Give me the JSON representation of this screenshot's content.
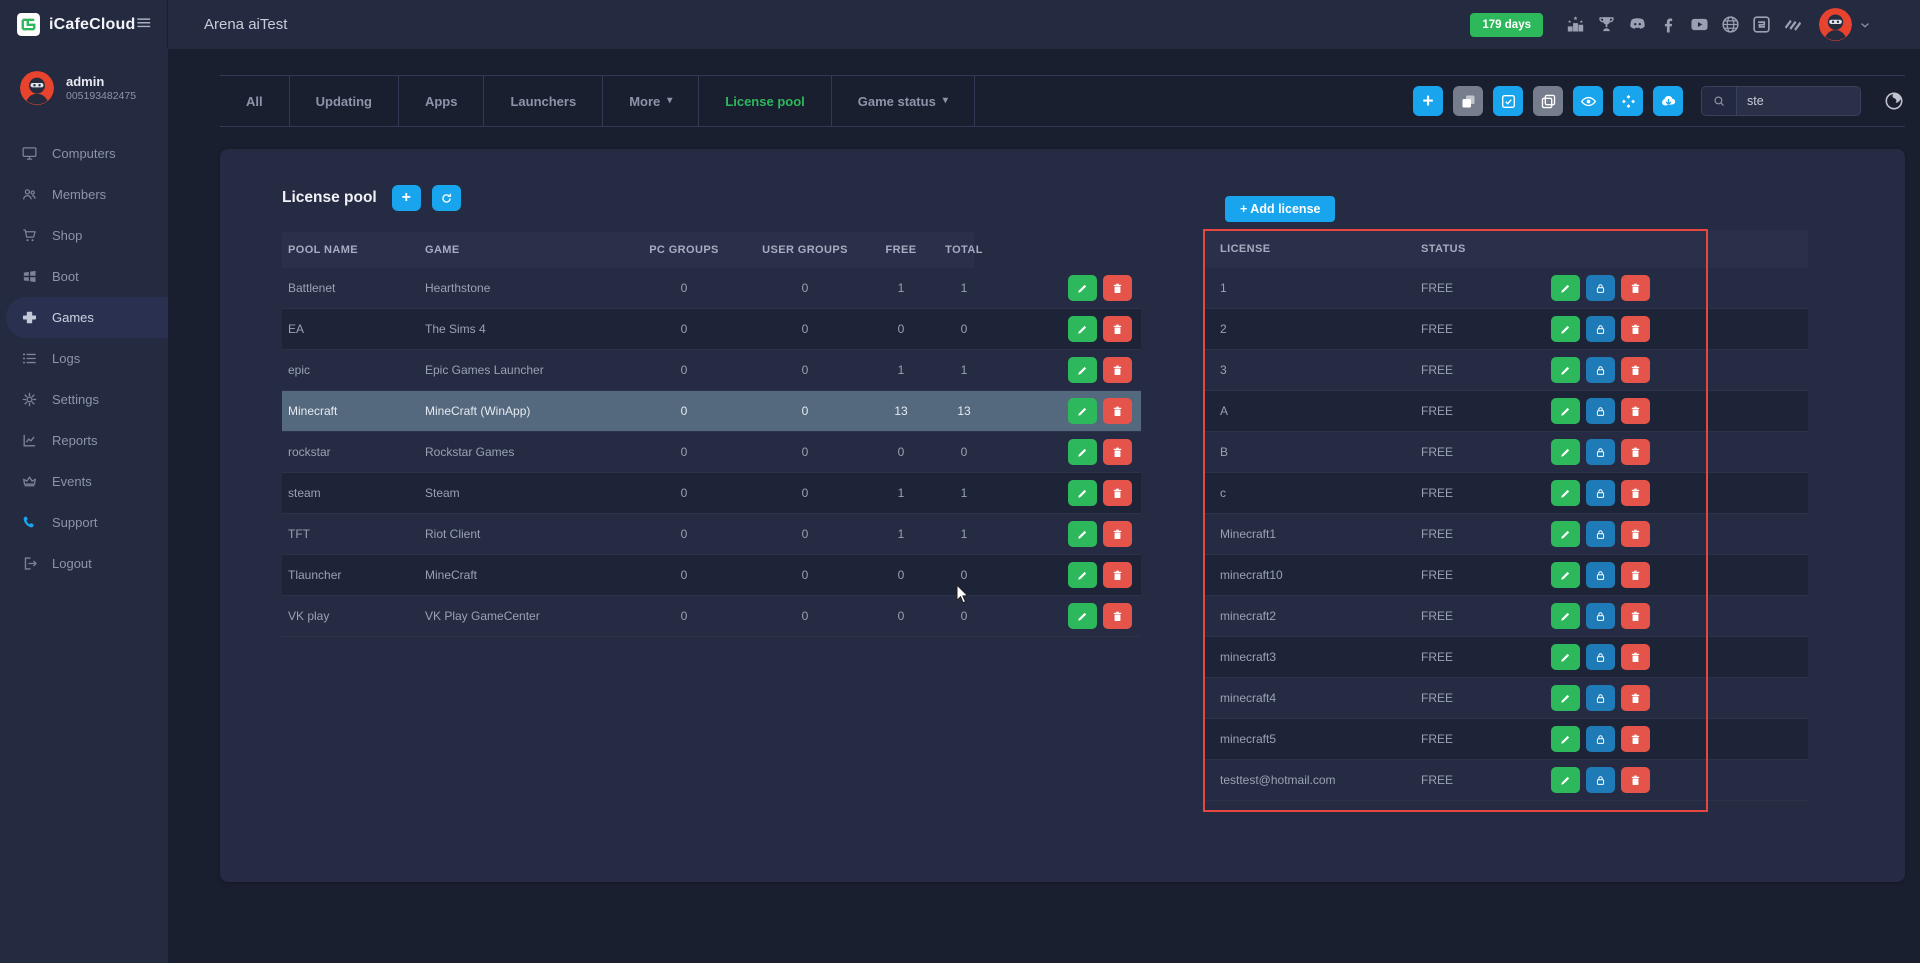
{
  "header": {
    "brand": "iCafeCloud",
    "page_title": "Arena aiTest",
    "days_badge": "179 days",
    "icons": [
      "ranking",
      "trophy",
      "discord",
      "facebook",
      "youtube",
      "globe",
      "icafecloud-mini",
      "layers-brand"
    ]
  },
  "sidebar": {
    "user": {
      "name": "admin",
      "id": "005193482475"
    },
    "items": [
      {
        "label": "Computers",
        "icon": "computers",
        "active": false
      },
      {
        "label": "Members",
        "icon": "members",
        "active": false
      },
      {
        "label": "Shop",
        "icon": "shop",
        "active": false
      },
      {
        "label": "Boot",
        "icon": "boot",
        "active": false
      },
      {
        "label": "Games",
        "icon": "games",
        "active": true
      },
      {
        "label": "Logs",
        "icon": "logs",
        "active": false
      },
      {
        "label": "Settings",
        "icon": "settings",
        "active": false
      },
      {
        "label": "Reports",
        "icon": "reports",
        "active": false
      },
      {
        "label": "Events",
        "icon": "events",
        "active": false
      },
      {
        "label": "Support",
        "icon": "support",
        "active": false,
        "icon_color": "blue"
      },
      {
        "label": "Logout",
        "icon": "logout",
        "active": false
      }
    ]
  },
  "tabs": [
    {
      "label": "All",
      "active": false,
      "dropdown": false
    },
    {
      "label": "Updating",
      "active": false,
      "dropdown": false
    },
    {
      "label": "Apps",
      "active": false,
      "dropdown": false
    },
    {
      "label": "Launchers",
      "active": false,
      "dropdown": false
    },
    {
      "label": "More",
      "active": false,
      "dropdown": true
    },
    {
      "label": "License pool",
      "active": true,
      "dropdown": false
    },
    {
      "label": "Game status",
      "active": false,
      "dropdown": true
    }
  ],
  "toolbar": {
    "buttons": [
      {
        "name": "add",
        "icon": "plus",
        "style": "blue"
      },
      {
        "name": "copy-filled",
        "icon": "layers",
        "style": "gray"
      },
      {
        "name": "select-check",
        "icon": "check-square",
        "style": "blue"
      },
      {
        "name": "duplicate",
        "icon": "copy",
        "style": "gray"
      },
      {
        "name": "visibility",
        "icon": "eye",
        "style": "blue"
      },
      {
        "name": "categories",
        "icon": "diamonds",
        "style": "blue"
      },
      {
        "name": "cloud-download",
        "icon": "cloud-download",
        "style": "blue"
      }
    ],
    "search_value": "ste"
  },
  "pool_panel": {
    "title": "License pool",
    "columns": [
      "POOL NAME",
      "GAME",
      "PC GROUPS",
      "USER GROUPS",
      "FREE",
      "TOTAL"
    ],
    "rows": [
      {
        "pool": "Battlenet",
        "game": "Hearthstone",
        "pc_groups": "0",
        "user_groups": "0",
        "free": "1",
        "total": "1",
        "selected": false
      },
      {
        "pool": "EA",
        "game": "The Sims 4",
        "pc_groups": "0",
        "user_groups": "0",
        "free": "0",
        "total": "0",
        "selected": false
      },
      {
        "pool": "epic",
        "game": "Epic Games Launcher",
        "pc_groups": "0",
        "user_groups": "0",
        "free": "1",
        "total": "1",
        "selected": false
      },
      {
        "pool": "Minecraft",
        "game": "MineCraft (WinApp)",
        "pc_groups": "0",
        "user_groups": "0",
        "free": "13",
        "total": "13",
        "selected": true
      },
      {
        "pool": "rockstar",
        "game": "Rockstar Games",
        "pc_groups": "0",
        "user_groups": "0",
        "free": "0",
        "total": "0",
        "selected": false
      },
      {
        "pool": "steam",
        "game": "Steam",
        "pc_groups": "0",
        "user_groups": "0",
        "free": "1",
        "total": "1",
        "selected": false
      },
      {
        "pool": "TFT",
        "game": "Riot Client",
        "pc_groups": "0",
        "user_groups": "0",
        "free": "1",
        "total": "1",
        "selected": false
      },
      {
        "pool": "Tlauncher",
        "game": "MineCraft",
        "pc_groups": "0",
        "user_groups": "0",
        "free": "0",
        "total": "0",
        "selected": false
      },
      {
        "pool": "VK play",
        "game": "VK Play GameCenter",
        "pc_groups": "0",
        "user_groups": "0",
        "free": "0",
        "total": "0",
        "selected": false
      }
    ]
  },
  "license_panel": {
    "add_button": "+ Add license",
    "columns": [
      "LICENSE",
      "STATUS"
    ],
    "rows": [
      {
        "license": "1",
        "status": "FREE"
      },
      {
        "license": "2",
        "status": "FREE"
      },
      {
        "license": "3",
        "status": "FREE"
      },
      {
        "license": "A",
        "status": "FREE"
      },
      {
        "license": "B",
        "status": "FREE"
      },
      {
        "license": "c",
        "status": "FREE"
      },
      {
        "license": "Minecraft1",
        "status": "FREE"
      },
      {
        "license": "minecraft10",
        "status": "FREE"
      },
      {
        "license": "minecraft2",
        "status": "FREE"
      },
      {
        "license": "minecraft3",
        "status": "FREE"
      },
      {
        "license": "minecraft4",
        "status": "FREE"
      },
      {
        "license": "minecraft5",
        "status": "FREE"
      },
      {
        "license": "testtest@hotmail.com",
        "status": "FREE"
      }
    ]
  },
  "colors": {
    "accent_blue": "#18a5ee",
    "green": "#2eb85c",
    "red": "#e5544b",
    "lock_blue": "#1e7bb8",
    "selected_row": "#54687e",
    "annotation_red": "#e8473f"
  }
}
